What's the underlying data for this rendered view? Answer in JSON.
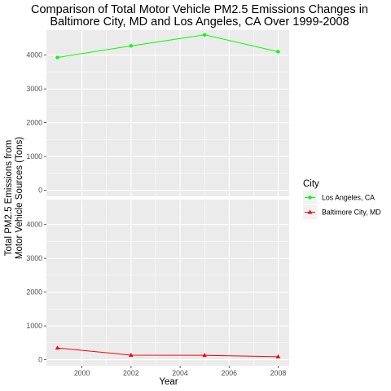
{
  "chart_data": {
    "type": "line",
    "title_line1": "Comparison of Total Motor Vehicle PM2.5 Emissions Changes in",
    "title_line2": "Baltimore City, MD and Los Angeles, CA Over 1999-2008",
    "xlabel": "Year",
    "ylabel_line1": "Total PM2.5 Emissions from",
    "ylabel_line2": "Motor Vehicle Sources (Tons)",
    "x": [
      1999,
      2002,
      2005,
      2008
    ],
    "xticks": [
      2000,
      2002,
      2004,
      2006,
      2008
    ],
    "xlim": [
      1998.55,
      2008.45
    ],
    "yticks": [
      0,
      1000,
      2000,
      3000,
      4000
    ],
    "ylim": [
      -180,
      4740
    ],
    "grid": true,
    "legend_position": "right",
    "legend_title": "City",
    "series": [
      {
        "name": "Los Angeles, CA",
        "color": "#00FF00",
        "marker": "circle",
        "values": [
          3931,
          4274,
          4601,
          4101
        ]
      },
      {
        "name": "Baltimore City, MD",
        "color": "#FF0000",
        "marker": "triangle",
        "values": [
          347,
          134,
          130,
          88
        ]
      }
    ]
  }
}
